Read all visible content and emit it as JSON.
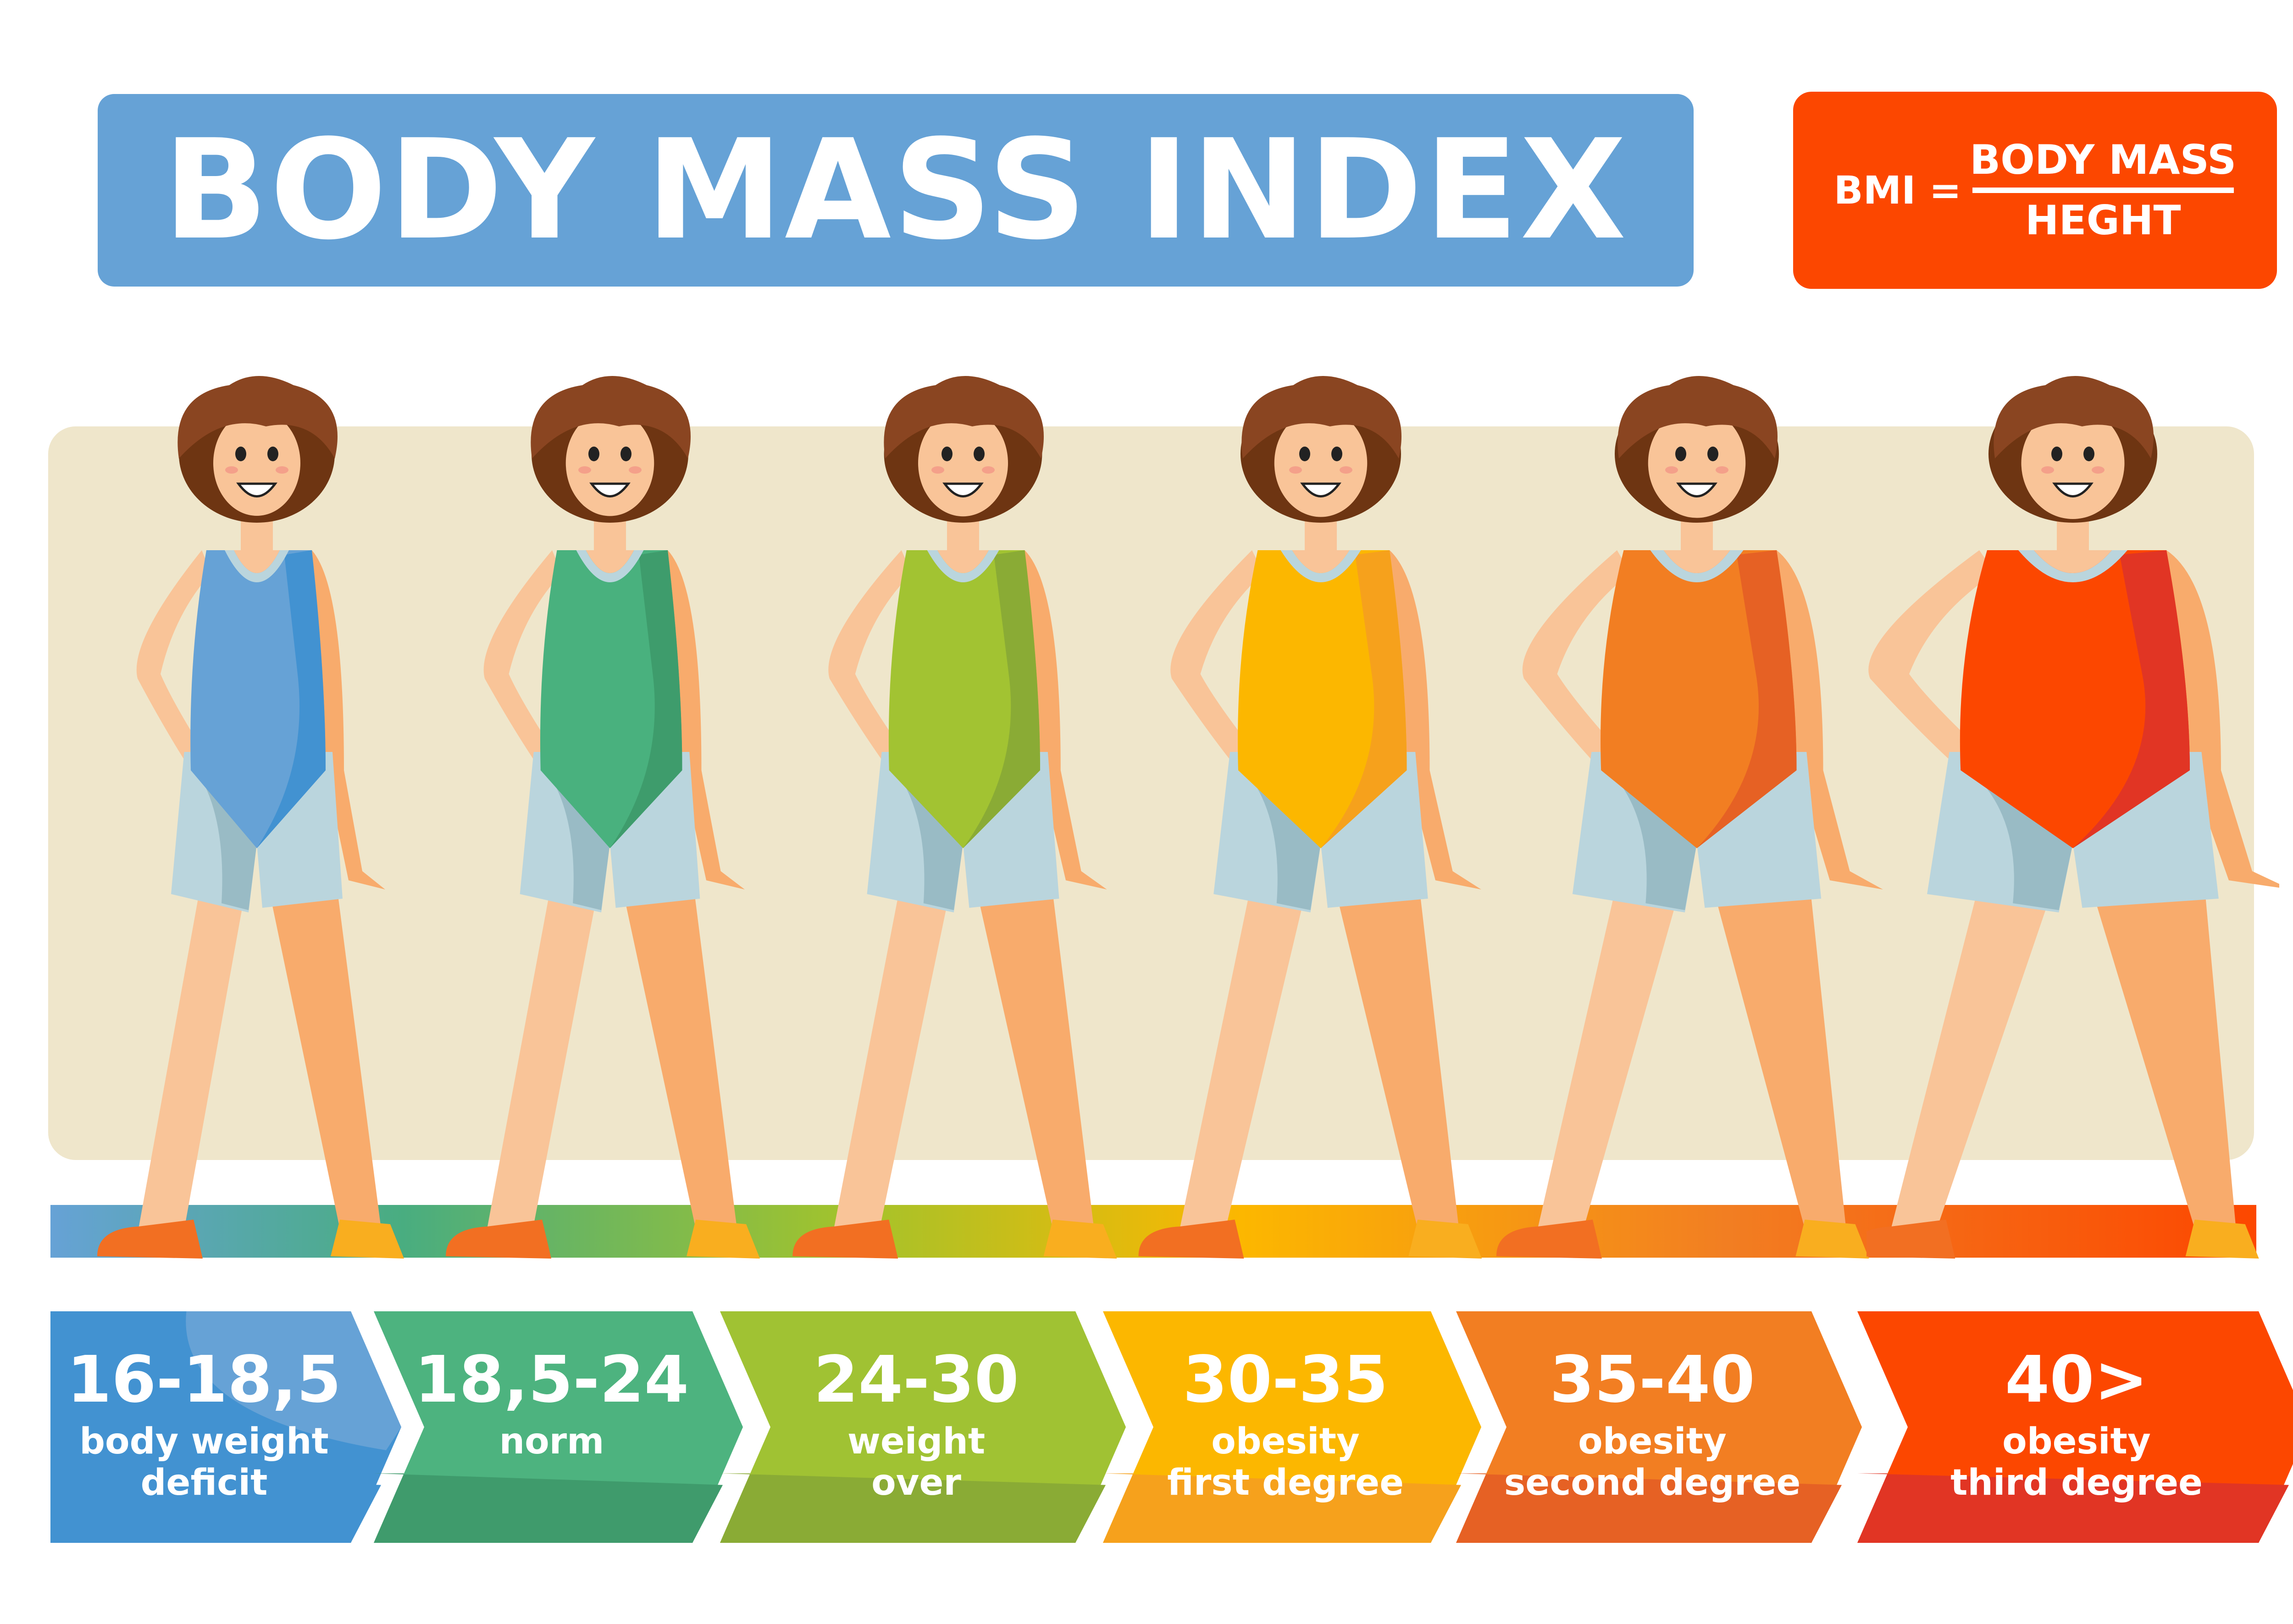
{
  "header": {
    "title": "BODY MASS INDEX",
    "title_bg": "#66a2d6"
  },
  "formula": {
    "lhs": "BMI =",
    "numerator": "BODY MASS",
    "denominator": "HEGHT",
    "bg": "#fc4700"
  },
  "figures": [
    {
      "category": "body weight deficit",
      "suit_color": "#66a2d6",
      "suit_shade": "#4292d1"
    },
    {
      "category": "norm",
      "suit_color": "#49b17e",
      "suit_shade": "#3e9c6c"
    },
    {
      "category": "weight over",
      "suit_color": "#a2c332",
      "suit_shade": "#8aab35"
    },
    {
      "category": "obesity first degree",
      "suit_color": "#fcb700",
      "suit_shade": "#f6a11c"
    },
    {
      "category": "obesity second degree",
      "suit_color": "#f27e22",
      "suit_shade": "#e66124"
    },
    {
      "category": "obesity third degree",
      "suit_color": "#fc4700",
      "suit_shade": "#e13524"
    }
  ],
  "scale": [
    {
      "range": "16-18,5",
      "label_lines": [
        "body weight",
        "deficit"
      ],
      "color": "#4292d1",
      "shade": "#4292d1",
      "highlight": "#66a2d6"
    },
    {
      "range": "18,5-24",
      "label_lines": [
        "norm"
      ],
      "color": "#4db37f",
      "shade": "#3f9b6c"
    },
    {
      "range": "24-30",
      "label_lines": [
        "weight",
        "over"
      ],
      "color": "#a0c233",
      "shade": "#8aab35"
    },
    {
      "range": "30-35",
      "label_lines": [
        "obesity",
        "first degree"
      ],
      "color": "#fcb700",
      "shade": "#f6a11c"
    },
    {
      "range": "35-40",
      "label_lines": [
        "obesity",
        "second degree"
      ],
      "color": "#f27e22",
      "shade": "#e66124"
    },
    {
      "range": "40>",
      "label_lines": [
        "obesity",
        "third degree"
      ],
      "color": "#fc4700",
      "shade": "#e13524"
    }
  ]
}
